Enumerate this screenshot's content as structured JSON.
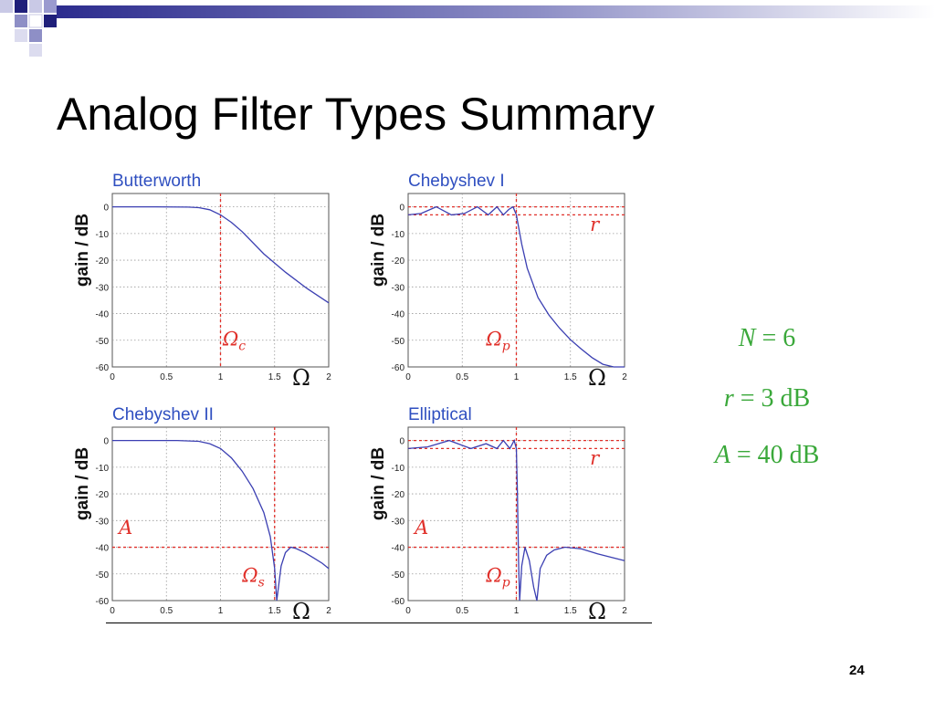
{
  "slide": {
    "title": "Analog Filter Types Summary",
    "page_number": "24"
  },
  "params": [
    {
      "sym": "N",
      "rest": " = 6"
    },
    {
      "sym": "r",
      "rest": " = 3 dB"
    },
    {
      "sym": "A",
      "rest": " = 40 dB"
    }
  ],
  "colors": {
    "curve": "#3b3fb2",
    "guide": "#e0302a",
    "panel_title": "#2f4fc0",
    "params": "#3aa83a",
    "accent_bar": "#2c2c8e"
  },
  "chart_data": [
    {
      "type": "line",
      "title": "Butterworth",
      "xlabel": "Ω",
      "ylabel": "gain / dB",
      "xlim": [
        0,
        2
      ],
      "ylim": [
        -60,
        5
      ],
      "xticks": [
        "0",
        "0.5",
        "1",
        "1.5",
        "2"
      ],
      "yticks": [
        "0",
        "-10",
        "-20",
        "-30",
        "-40",
        "-50",
        "-60"
      ],
      "grid": true,
      "series": [
        {
          "x": [
            0,
            0.4,
            0.7,
            0.8,
            0.9,
            1.0,
            1.1,
            1.2,
            1.4,
            1.6,
            1.8,
            2.0
          ],
          "y": [
            0,
            0,
            -0.1,
            -0.3,
            -1.1,
            -3,
            -5.8,
            -9.3,
            -17.6,
            -24.5,
            -30.6,
            -36
          ]
        }
      ],
      "guides": [
        {
          "axis": "x",
          "value": 1.0
        }
      ],
      "annotations": [
        {
          "text": "Ω",
          "sub": "c",
          "x": 1.02,
          "y": -52
        }
      ]
    },
    {
      "type": "line",
      "title": "Chebyshev I",
      "xlabel": "Ω",
      "ylabel": "gain / dB",
      "xlim": [
        0,
        2
      ],
      "ylim": [
        -60,
        5
      ],
      "xticks": [
        "0",
        "0.5",
        "1",
        "1.5",
        "2"
      ],
      "yticks": [
        "0",
        "-10",
        "-20",
        "-30",
        "-40",
        "-50",
        "-60"
      ],
      "grid": true,
      "series": [
        {
          "x": [
            0,
            0.12,
            0.26,
            0.4,
            0.52,
            0.64,
            0.74,
            0.82,
            0.88,
            0.93,
            0.97,
            1.0,
            1.05,
            1.1,
            1.2,
            1.3,
            1.4,
            1.5,
            1.6,
            1.7,
            1.8,
            1.9,
            2.0
          ],
          "y": [
            -3,
            -2.5,
            0,
            -3,
            -2.5,
            0,
            -3,
            0,
            -3,
            -1,
            0,
            -3,
            -14,
            -23,
            -34,
            -40.5,
            -45.5,
            -49.8,
            -53.3,
            -56.5,
            -59,
            -61.5,
            -63.5
          ]
        }
      ],
      "guides": [
        {
          "axis": "x",
          "value": 1.0
        },
        {
          "axis": "y",
          "value": 0
        },
        {
          "axis": "y",
          "value": -3
        }
      ],
      "annotations": [
        {
          "text": "r",
          "x": 1.68,
          "y": -9
        },
        {
          "text": "Ω",
          "sub": "p",
          "x": 0.72,
          "y": -52
        }
      ]
    },
    {
      "type": "line",
      "title": "Chebyshev II",
      "xlabel": "Ω",
      "ylabel": "gain / dB",
      "xlim": [
        0,
        2
      ],
      "ylim": [
        -60,
        5
      ],
      "xticks": [
        "0",
        "0.5",
        "1",
        "1.5",
        "2"
      ],
      "yticks": [
        "0",
        "-10",
        "-20",
        "-30",
        "-40",
        "-50",
        "-60"
      ],
      "grid": true,
      "series": [
        {
          "x": [
            0,
            0.6,
            0.8,
            0.9,
            1.0,
            1.1,
            1.2,
            1.3,
            1.4,
            1.46,
            1.5,
            1.52,
            1.56,
            1.6,
            1.65,
            1.7,
            1.78,
            1.86,
            1.94,
            2.0
          ],
          "y": [
            0,
            0,
            -0.3,
            -1.2,
            -3,
            -6.5,
            -11.5,
            -18,
            -27,
            -36,
            -48,
            -62,
            -47,
            -42,
            -40,
            -40.5,
            -42,
            -44,
            -46,
            -48
          ]
        }
      ],
      "guides": [
        {
          "axis": "x",
          "value": 1.5
        },
        {
          "axis": "y",
          "value": -40
        }
      ],
      "annotations": [
        {
          "text": "A",
          "x": 0.06,
          "y": -35
        },
        {
          "text": "Ω",
          "sub": "s",
          "x": 1.2,
          "y": -53
        }
      ]
    },
    {
      "type": "line",
      "title": "Elliptical",
      "xlabel": "Ω",
      "ylabel": "gain / dB",
      "xlim": [
        0,
        2
      ],
      "ylim": [
        -60,
        5
      ],
      "xticks": [
        "0",
        "0.5",
        "1",
        "1.5",
        "2"
      ],
      "yticks": [
        "0",
        "-10",
        "-20",
        "-30",
        "-40",
        "-50",
        "-60"
      ],
      "grid": true,
      "series": [
        {
          "x": [
            0,
            0.18,
            0.38,
            0.58,
            0.72,
            0.82,
            0.88,
            0.94,
            0.98,
            1.0,
            1.01,
            1.02,
            1.03,
            1.05,
            1.08,
            1.12,
            1.16,
            1.19,
            1.22,
            1.28,
            1.35,
            1.45,
            1.6,
            1.75,
            1.9,
            2.0
          ],
          "y": [
            -3,
            -2.4,
            0,
            -3,
            -1.2,
            -3,
            0,
            -3,
            0,
            -3,
            -20,
            -45,
            -62,
            -47,
            -40,
            -45,
            -55,
            -62,
            -48,
            -43,
            -41,
            -40,
            -40.6,
            -42.5,
            -44,
            -45
          ]
        }
      ],
      "guides": [
        {
          "axis": "x",
          "value": 1.0
        },
        {
          "axis": "y",
          "value": 0
        },
        {
          "axis": "y",
          "value": -3
        },
        {
          "axis": "y",
          "value": -40
        }
      ],
      "annotations": [
        {
          "text": "r",
          "x": 1.68,
          "y": -9
        },
        {
          "text": "A",
          "x": 0.06,
          "y": -35
        },
        {
          "text": "Ω",
          "sub": "p",
          "x": 0.72,
          "y": -53
        }
      ]
    }
  ]
}
